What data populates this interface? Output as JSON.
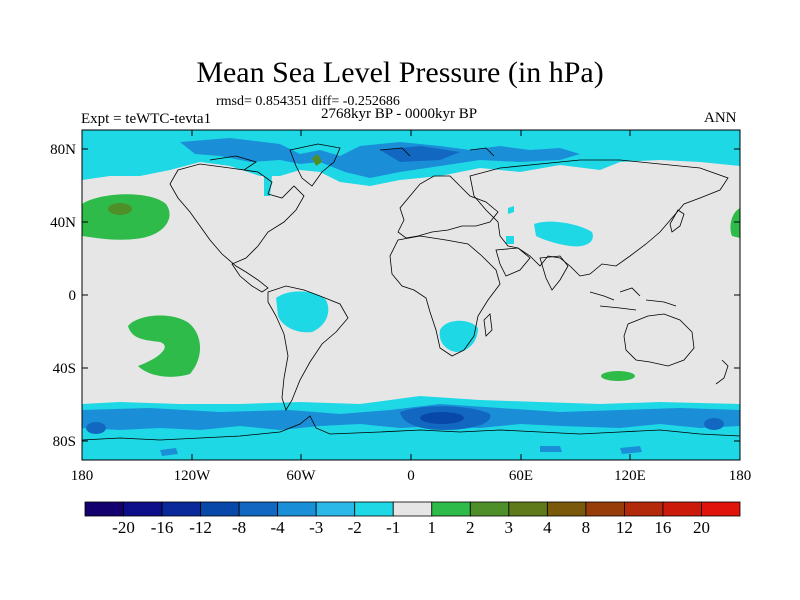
{
  "title": "Mean Sea Level Pressure (in hPa)",
  "stats_line": "rmsd= 0.854351 diff= -0.252686",
  "period_line": "2768kyr BP - 0000kyr BP",
  "experiment_line": "Expt = teWTC-tevta1",
  "season": "ANN",
  "lat_labels": [
    "80N",
    "40N",
    "0",
    "40S",
    "80S"
  ],
  "lon_labels": [
    "180",
    "120W",
    "60W",
    "0",
    "60E",
    "120E",
    "180"
  ],
  "colorbar": {
    "labels": [
      "-20",
      "-16",
      "-12",
      "-8",
      "-4",
      "-3",
      "-2",
      "-1",
      "1",
      "2",
      "3",
      "4",
      "8",
      "12",
      "16",
      "20"
    ],
    "colors": [
      "#14006e",
      "#0d0e8a",
      "#0b2a9a",
      "#0748a8",
      "#1268c0",
      "#1a8fd8",
      "#2ab8e8",
      "#1fd8e6",
      "#e6e6e6",
      "#2ebb4a",
      "#4f8f2a",
      "#5f7a1a",
      "#7a5a0a",
      "#963d0a",
      "#b22a0a",
      "#cc1a0a",
      "#e0140a"
    ]
  },
  "colors": {
    "neutral": "#e6e6e6",
    "light_blue": "#1fd8e6",
    "blue_m3": "#1a8fd8",
    "blue_m4": "#1268c0",
    "blue_m8": "#0748a8",
    "green_p2": "#2ebb4a",
    "olive_p3": "#4f8f2a",
    "coast": "#000000"
  }
}
